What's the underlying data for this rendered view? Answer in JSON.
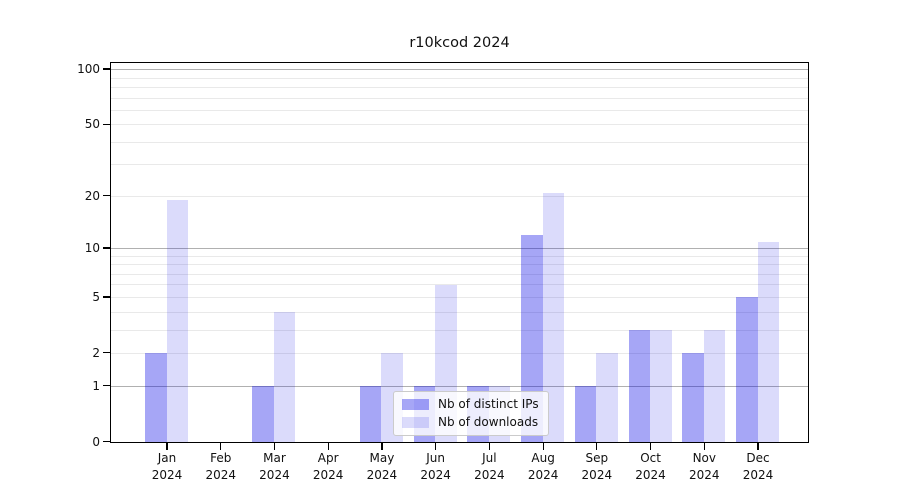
{
  "figure": {
    "title": "r10kcod 2024"
  },
  "chart_data": {
    "type": "bar",
    "title": "r10kcod 2024",
    "months": [
      "Jan",
      "Feb",
      "Mar",
      "Apr",
      "May",
      "Jun",
      "Jul",
      "Aug",
      "Sep",
      "Oct",
      "Nov",
      "Dec"
    ],
    "year": "2024",
    "categories": [
      "Jan 2024",
      "Feb 2024",
      "Mar 2024",
      "Apr 2024",
      "May 2024",
      "Jun 2024",
      "Jul 2024",
      "Aug 2024",
      "Sep 2024",
      "Oct 2024",
      "Nov 2024",
      "Dec 2024"
    ],
    "series": [
      {
        "name": "Nb of distinct IPs",
        "fill": "rgba(0,0,230,0.35)",
        "values": [
          2,
          0,
          1,
          0,
          1,
          1,
          1,
          12,
          1,
          3,
          2,
          5
        ]
      },
      {
        "name": "Nb of downloads",
        "fill": "rgba(0,0,230,0.14)",
        "values": [
          19,
          0,
          4,
          0,
          2,
          6,
          1,
          21,
          2,
          3,
          3,
          11
        ]
      }
    ],
    "y_axis": {
      "scale": "log1p",
      "ylim": [
        0,
        110
      ],
      "tick_values": [
        0,
        1,
        2,
        5,
        10,
        20,
        50,
        100
      ],
      "tick_labels": [
        "0",
        "1",
        "2",
        "5",
        "10",
        "20",
        "50",
        "100"
      ],
      "major_gridlines": [
        1,
        10,
        100
      ],
      "minor_gridlines": [
        2,
        3,
        4,
        5,
        6,
        7,
        8,
        9,
        20,
        30,
        40,
        50,
        60,
        70,
        80,
        90
      ]
    },
    "legend": {
      "position": "lower center",
      "items": [
        "Nb of distinct IPs",
        "Nb of downloads"
      ]
    },
    "colors": {
      "bar_distinct_ips": "#a9a9f8",
      "bar_downloads": "#dcdcfa",
      "major_grid": "#b0b0b0",
      "minor_grid": "#e9e9e9",
      "spine": "#000000",
      "background": "#ffffff"
    },
    "grid": true
  }
}
